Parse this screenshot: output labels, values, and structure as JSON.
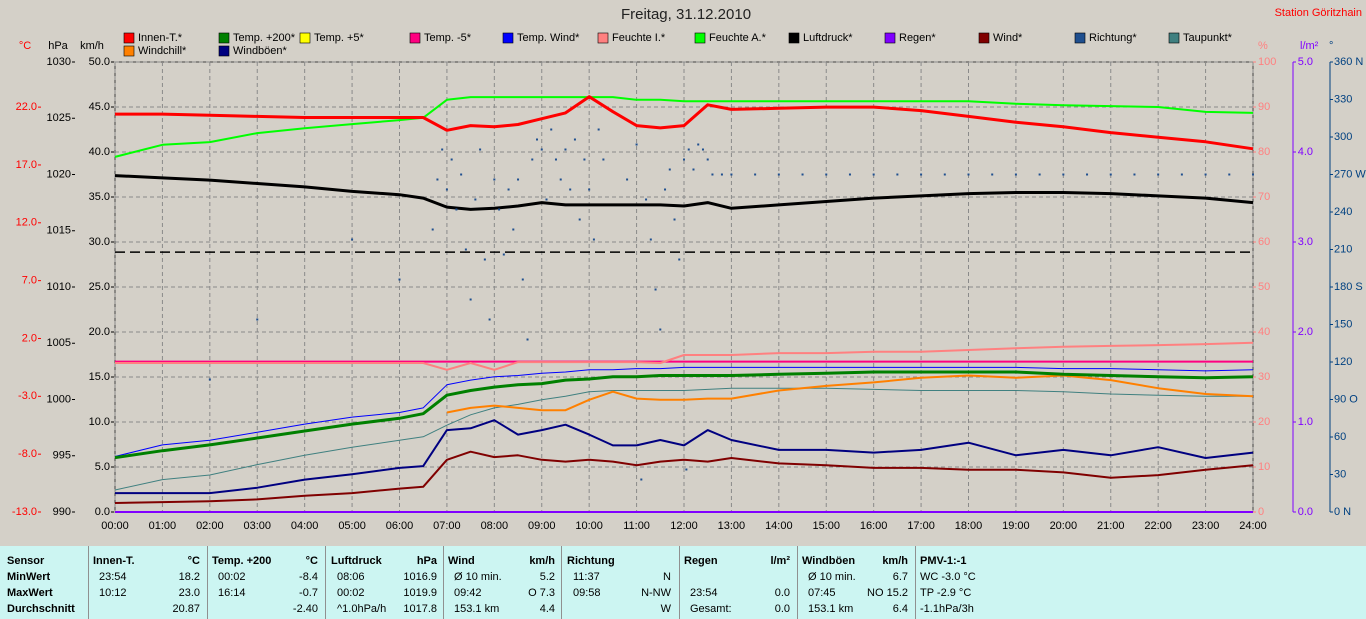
{
  "chart_data": {
    "type": "line",
    "title": "Freitag, 31.12.2010",
    "station": "Station Göritzhain",
    "xlim": [
      0,
      24
    ],
    "xticks": [
      {
        "value": 0,
        "label": "00:00"
      },
      {
        "value": 1,
        "label": "01:00"
      },
      {
        "value": 2,
        "label": "02:00"
      },
      {
        "value": 3,
        "label": "03:00"
      },
      {
        "value": 4,
        "label": "04:00"
      },
      {
        "value": 5,
        "label": "05:00"
      },
      {
        "value": 6,
        "label": "06:00"
      },
      {
        "value": 7,
        "label": "07:00"
      },
      {
        "value": 8,
        "label": "08:00"
      },
      {
        "value": 9,
        "label": "09:00"
      },
      {
        "value": 10,
        "label": "10:00"
      },
      {
        "value": 11,
        "label": "11:00"
      },
      {
        "value": 12,
        "label": "12:00"
      },
      {
        "value": 13,
        "label": "13:00"
      },
      {
        "value": 14,
        "label": "14:00"
      },
      {
        "value": 15,
        "label": "15:00"
      },
      {
        "value": 16,
        "label": "16:00"
      },
      {
        "value": 17,
        "label": "17:00"
      },
      {
        "value": 18,
        "label": "18:00"
      },
      {
        "value": 19,
        "label": "19:00"
      },
      {
        "value": 20,
        "label": "20:00"
      },
      {
        "value": 21,
        "label": "21:00"
      },
      {
        "value": 22,
        "label": "22:00"
      },
      {
        "value": 23,
        "label": "23:00"
      },
      {
        "value": 24,
        "label": "24:00"
      }
    ],
    "grid": true,
    "grid_axis": "km/h",
    "axes": [
      {
        "unit": "°C",
        "color": "#ff0000",
        "ylim": [
          -13,
          25.9
        ],
        "yticks": [
          {
            "value": -13,
            "label": "-13.0"
          },
          {
            "value": -8,
            "label": "-8.0"
          },
          {
            "value": -3,
            "label": "-3.0"
          },
          {
            "value": 2,
            "label": "2.0"
          },
          {
            "value": 7,
            "label": "7.0"
          },
          {
            "value": 12,
            "label": "12.0"
          },
          {
            "value": 17,
            "label": "17.0"
          },
          {
            "value": 22,
            "label": "22.0"
          }
        ]
      },
      {
        "unit": "hPa",
        "color": "#000000",
        "ylim": [
          990,
          1030
        ],
        "yticks": [
          990,
          995,
          1000,
          1005,
          1010,
          1015,
          1020,
          1025,
          1030
        ]
      },
      {
        "unit": "km/h",
        "color": "#000000",
        "ylim": [
          0,
          50
        ],
        "yticks": [
          {
            "value": 0,
            "label": "0.0"
          },
          {
            "value": 5,
            "label": "5.0"
          },
          {
            "value": 10,
            "label": "10.0"
          },
          {
            "value": 15,
            "label": "15.0"
          },
          {
            "value": 20,
            "label": "20.0"
          },
          {
            "value": 25,
            "label": "25.0"
          },
          {
            "value": 30,
            "label": "30.0"
          },
          {
            "value": 35,
            "label": "35.0"
          },
          {
            "value": 40,
            "label": "40.0"
          },
          {
            "value": 45,
            "label": "45.0"
          },
          {
            "value": 50,
            "label": "50.0"
          }
        ]
      },
      {
        "unit": "%",
        "color": "#ff8080",
        "ylim": [
          0,
          100
        ],
        "yticks": [
          0,
          10,
          20,
          30,
          40,
          50,
          60,
          70,
          80,
          90,
          100
        ]
      },
      {
        "unit": "l/m²",
        "color": "#8000ff",
        "ylim": [
          0,
          5
        ],
        "yticks": [
          {
            "value": 0,
            "label": "0.0"
          },
          {
            "value": 1,
            "label": "1.0"
          },
          {
            "value": 2,
            "label": "2.0"
          },
          {
            "value": 3,
            "label": "3.0"
          },
          {
            "value": 4,
            "label": "4.0"
          },
          {
            "value": 5,
            "label": "5.0"
          }
        ]
      },
      {
        "unit": "°",
        "color": "#004080",
        "ylim": [
          0,
          360
        ],
        "yticks": [
          {
            "value": 0,
            "label": "0 N"
          },
          30,
          60,
          {
            "value": 90,
            "label": "90 O"
          },
          120,
          150,
          {
            "value": 180,
            "label": "180 S"
          },
          210,
          240,
          {
            "value": 270,
            "label": "270 W"
          },
          300,
          330,
          {
            "value": 360,
            "label": "360 N"
          }
        ]
      }
    ],
    "hlines": [
      {
        "axis": "hPa",
        "value": 1013.1
      }
    ],
    "x": [
      0,
      1,
      2,
      3,
      4,
      5,
      6,
      6.5,
      7,
      7.5,
      8,
      8.5,
      9,
      9.5,
      10,
      10.5,
      11,
      11.5,
      12,
      12.5,
      13,
      14,
      15,
      16,
      17,
      18,
      19,
      20,
      21,
      22,
      23,
      24
    ],
    "series": [
      {
        "name": "Innen-T.*",
        "color": "#ff0000",
        "axis": "°C",
        "width": 3,
        "values": [
          21.4,
          21.4,
          21.3,
          21.2,
          21.1,
          21.1,
          21.1,
          21.1,
          20.0,
          20.4,
          20.3,
          20.5,
          21.0,
          21.5,
          22.9,
          21.6,
          20.4,
          20.2,
          20.4,
          22.2,
          21.8,
          21.9,
          22.0,
          22.0,
          21.7,
          21.2,
          20.7,
          20.3,
          19.8,
          19.4,
          19.0,
          18.4
        ]
      },
      {
        "name": "Temp. +200*",
        "color": "#008000",
        "axis": "°C",
        "width": 3,
        "values": [
          -8.3,
          -7.7,
          -7.2,
          -6.6,
          -6.0,
          -5.4,
          -4.9,
          -4.5,
          -2.9,
          -2.5,
          -2.2,
          -2.0,
          -1.9,
          -1.6,
          -1.5,
          -1.3,
          -1.3,
          -1.2,
          -1.2,
          -1.2,
          -1.2,
          -1.1,
          -1.0,
          -0.9,
          -0.9,
          -0.9,
          -0.9,
          -1.1,
          -1.2,
          -1.3,
          -1.4,
          -1.3
        ]
      },
      {
        "name": "Temp. +5*",
        "color": "#ffff00",
        "axis": "°C",
        "width": 2,
        "values": [
          null,
          null,
          null,
          null,
          null,
          null,
          null,
          null,
          null,
          null,
          null,
          null,
          null,
          null,
          null,
          null,
          null,
          null,
          null,
          null,
          null,
          null,
          null,
          null,
          null,
          null,
          null,
          null,
          null,
          null,
          null,
          null
        ]
      },
      {
        "name": "Temp. -5*",
        "color": "#ff0080",
        "axis": "°C",
        "width": 2,
        "values": [
          0.0,
          0.0,
          0.0,
          0.0,
          0.0,
          0.0,
          0.0,
          0.0,
          0.0,
          0.0,
          0.0,
          0.0,
          0.0,
          0.0,
          0.0,
          0.0,
          0.0,
          0.0,
          0.0,
          0.0,
          0.0,
          0.0,
          0.0,
          0.0,
          0.0,
          0.0,
          0.0,
          0.0,
          0.0,
          0.0,
          0.0,
          0.0
        ]
      },
      {
        "name": "Temp. Wind*",
        "color": "#0000ff",
        "axis": "°C",
        "width": 1,
        "values": [
          -8.2,
          -7.2,
          -6.8,
          -6.1,
          -5.4,
          -4.8,
          -4.4,
          -4.0,
          -2.0,
          -1.6,
          -1.3,
          -1.2,
          -1.0,
          -0.9,
          -0.7,
          -0.7,
          -0.6,
          -0.6,
          -0.5,
          -0.5,
          -0.5,
          -0.5,
          -0.5,
          -0.5,
          -0.5,
          -0.5,
          -0.5,
          -0.6,
          -0.6,
          -0.7,
          -0.8,
          -0.7
        ]
      },
      {
        "name": "Feuchte I.*",
        "color": "#ff8080",
        "axis": "%",
        "width": 2,
        "values": [
          33.1,
          33.1,
          33.1,
          33.1,
          33.1,
          33.1,
          33.1,
          33.1,
          31.6,
          33.1,
          31.6,
          33.3,
          33.3,
          33.3,
          33.3,
          33.3,
          33.3,
          33.1,
          34.9,
          34.9,
          34.9,
          35.3,
          35.3,
          35.6,
          35.6,
          36.0,
          36.4,
          36.7,
          36.9,
          37.1,
          37.3,
          37.6
        ]
      },
      {
        "name": "Feuchte A.*",
        "color": "#00ff00",
        "axis": "%",
        "width": 2,
        "values": [
          78.9,
          81.6,
          82.2,
          84.2,
          85.3,
          86.2,
          87.1,
          87.6,
          91.6,
          92.2,
          92.2,
          92.2,
          92.2,
          92.2,
          92.2,
          92.2,
          91.6,
          91.6,
          91.3,
          91.3,
          91.3,
          91.3,
          91.3,
          91.3,
          91.3,
          91.3,
          90.7,
          90.4,
          90.2,
          90.0,
          88.9,
          88.7
        ]
      },
      {
        "name": "Luftdruck*",
        "color": "#000000",
        "axis": "hPa",
        "width": 3,
        "values": [
          1019.9,
          1019.7,
          1019.5,
          1019.2,
          1018.9,
          1018.5,
          1018.2,
          1017.9,
          1017.1,
          1016.9,
          1017.0,
          1017.2,
          1017.5,
          1017.3,
          1017.3,
          1017.3,
          1017.3,
          1017.3,
          1017.2,
          1017.5,
          1017.0,
          1017.3,
          1017.6,
          1017.9,
          1018.1,
          1018.3,
          1018.4,
          1018.4,
          1018.3,
          1018.1,
          1017.9,
          1017.5
        ]
      },
      {
        "name": "Regen*",
        "color": "#8000ff",
        "axis": "l/m²",
        "width": 2,
        "values": [
          0,
          0,
          0,
          0,
          0,
          0,
          0,
          0,
          0,
          0,
          0,
          0,
          0,
          0,
          0,
          0,
          0,
          0,
          0,
          0,
          0,
          0,
          0,
          0,
          0,
          0,
          0,
          0,
          0,
          0,
          0,
          0
        ]
      },
      {
        "name": "Wind*",
        "color": "#800000",
        "axis": "km/h",
        "width": 2,
        "values": [
          1.0,
          1.1,
          1.2,
          1.4,
          1.8,
          2.1,
          2.6,
          2.8,
          5.8,
          6.7,
          6.1,
          6.3,
          5.8,
          5.6,
          5.8,
          5.6,
          5.2,
          5.6,
          5.8,
          5.6,
          6.0,
          5.4,
          5.2,
          4.9,
          4.9,
          4.7,
          4.7,
          4.4,
          3.8,
          4.1,
          4.7,
          5.2
        ]
      },
      {
        "name": "Richtung*",
        "color": "#1f4f8f",
        "axis": "°",
        "style": "dots",
        "x": [
          2.0,
          3.0,
          5.0,
          6.0,
          6.7,
          6.8,
          6.9,
          7.0,
          7.1,
          7.2,
          7.3,
          7.4,
          7.5,
          7.6,
          7.7,
          7.8,
          7.9,
          8.0,
          8.1,
          8.2,
          8.3,
          8.4,
          8.5,
          8.6,
          8.7,
          8.8,
          8.9,
          9.0,
          9.1,
          9.2,
          9.3,
          9.4,
          9.5,
          9.6,
          9.7,
          9.8,
          9.9,
          10.0,
          10.1,
          10.2,
          10.3,
          10.8,
          11.0,
          11.1,
          11.2,
          11.3,
          11.4,
          11.5,
          11.6,
          11.7,
          11.8,
          11.9,
          12.0,
          12.05,
          12.1,
          12.2,
          12.3,
          12.4,
          12.5,
          12.6,
          12.8,
          13.0,
          13.5,
          14.0,
          14.5,
          15.0,
          15.5,
          16.0,
          16.5,
          17.0,
          17.5,
          18.0,
          18.5,
          19.0,
          19.5,
          20.0,
          20.5,
          21.0,
          21.5,
          22.0,
          22.5,
          23.0,
          23.5,
          24.0
        ],
        "values": [
          106,
          154,
          218,
          186,
          226,
          266,
          290,
          258,
          282,
          242,
          270,
          210,
          170,
          250,
          290,
          202,
          154,
          266,
          242,
          206,
          258,
          226,
          266,
          186,
          138,
          282,
          298,
          290,
          250,
          306,
          282,
          266,
          290,
          258,
          298,
          234,
          282,
          258,
          218,
          306,
          282,
          266,
          294,
          26,
          250,
          218,
          178,
          146,
          258,
          274,
          234,
          202,
          282,
          34,
          290,
          274,
          294,
          290,
          282,
          270,
          270,
          270,
          270,
          270,
          270,
          270,
          270,
          270,
          270,
          270,
          270,
          270,
          270,
          270,
          270,
          270,
          270,
          270,
          270,
          270,
          270,
          270,
          270,
          270
        ]
      },
      {
        "name": "Taupunkt*",
        "color": "#408080",
        "axis": "°C",
        "width": 1,
        "values": [
          -11.1,
          -10.2,
          -9.8,
          -8.9,
          -8.1,
          -7.4,
          -6.8,
          -6.5,
          -5.5,
          -4.6,
          -4.0,
          -3.7,
          -3.3,
          -3.0,
          -2.6,
          -2.5,
          -2.5,
          -2.5,
          -2.5,
          -2.4,
          -2.3,
          -2.3,
          -2.3,
          -2.4,
          -2.5,
          -2.5,
          -2.5,
          -2.6,
          -2.8,
          -2.9,
          -3.0,
          -3.0
        ]
      },
      {
        "name": "Windchill*",
        "color": "#ff8000",
        "axis": "°C",
        "width": 2,
        "values": [
          null,
          null,
          null,
          null,
          null,
          null,
          null,
          null,
          -4.4,
          -4.0,
          -3.8,
          -4.0,
          -4.2,
          -4.2,
          -3.3,
          -2.6,
          -3.2,
          -3.3,
          -3.3,
          -3.2,
          -3.2,
          -2.5,
          -2.1,
          -1.8,
          -1.4,
          -1.2,
          -1.4,
          -1.2,
          -1.6,
          -2.3,
          -2.8,
          -3.0
        ]
      },
      {
        "name": "Windböen*",
        "color": "#000080",
        "axis": "km/h",
        "width": 2,
        "values": [
          2.1,
          2.1,
          2.1,
          2.7,
          3.6,
          4.2,
          4.9,
          5.1,
          9.1,
          9.3,
          10.2,
          8.6,
          9.1,
          9.7,
          8.6,
          7.4,
          7.4,
          8.0,
          7.4,
          9.1,
          8.0,
          6.9,
          6.9,
          6.6,
          6.9,
          7.7,
          6.3,
          6.9,
          6.3,
          7.2,
          6.0,
          6.6
        ]
      }
    ]
  },
  "table": {
    "row_labels": [
      "Sensor",
      "MinWert",
      "MaxWert",
      "Durchschnitt"
    ],
    "groups": [
      {
        "header": [
          "Innen-T.",
          "°C"
        ],
        "rows": [
          [
            "23:54",
            "18.2"
          ],
          [
            "10:12",
            "23.0"
          ],
          [
            null,
            "20.87"
          ]
        ]
      },
      {
        "header": [
          "Temp. +200",
          "°C"
        ],
        "rows": [
          [
            "00:02",
            "-8.4"
          ],
          [
            "16:14",
            "-0.7"
          ],
          [
            null,
            "-2.40"
          ]
        ]
      },
      {
        "header": [
          "Luftdruck",
          "hPa"
        ],
        "rows": [
          [
            "08:06",
            "1016.9"
          ],
          [
            "00:02",
            "1019.9"
          ],
          [
            "^1.0hPa/h",
            "1017.8"
          ]
        ]
      },
      {
        "header": [
          "Wind",
          "km/h"
        ],
        "rows": [
          [
            "Ø 10 min.",
            "5.2"
          ],
          [
            "09:42",
            "O 7.3"
          ],
          [
            "153.1 km",
            "4.4"
          ]
        ]
      },
      {
        "header": [
          "Richtung",
          null
        ],
        "rows": [
          [
            "11:37",
            "N"
          ],
          [
            "09:58",
            "N-NW"
          ],
          [
            null,
            "W"
          ]
        ]
      },
      {
        "header": [
          "Regen",
          "l/m²"
        ],
        "rows": [
          [
            null,
            null
          ],
          [
            "23:54",
            "0.0"
          ],
          [
            "Gesamt:",
            "0.0"
          ]
        ]
      },
      {
        "header": [
          "Windböen",
          "km/h"
        ],
        "rows": [
          [
            "Ø 10 min.",
            "6.7"
          ],
          [
            "07:45",
            "NO 15.2"
          ],
          [
            "153.1 km",
            "6.4"
          ]
        ]
      },
      {
        "header": [
          "PMV-1:-1",
          null
        ],
        "rows": [
          [
            "WC -3.0 °C",
            null
          ],
          [
            "TP -2.9 °C",
            null
          ],
          [
            "-1.1hPa/3h",
            null
          ]
        ]
      }
    ]
  }
}
